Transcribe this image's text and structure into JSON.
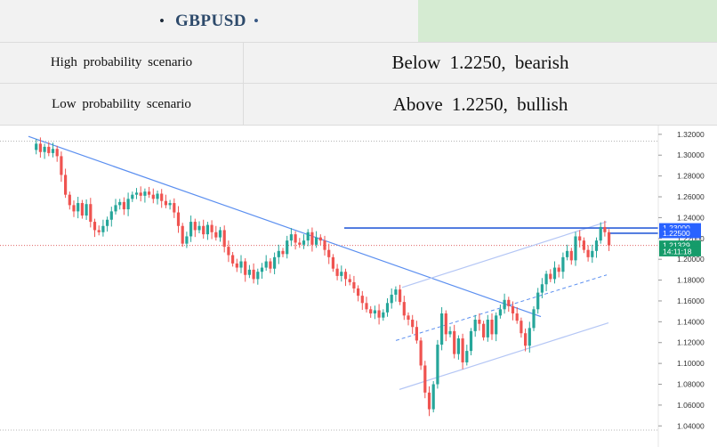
{
  "header": {
    "symbol": "GBPUSD",
    "bullet_left": "•",
    "bullet_right": "•"
  },
  "scenarios": [
    {
      "label": "High probability scenario",
      "value": "Below  1.2250,  bearish"
    },
    {
      "label": "Low probability scenario",
      "value": "Above  1.2250,  bullish"
    }
  ],
  "chart_data": {
    "type": "candlestick",
    "ylim": [
      1.03,
      1.325
    ],
    "y_ticks": [
      "1.32000",
      "1.30000",
      "1.28000",
      "1.26000",
      "1.24000",
      "1.22000",
      "1.20000",
      "1.18000",
      "1.16000",
      "1.14000",
      "1.12000",
      "1.10000",
      "1.08000",
      "1.06000",
      "1.04000"
    ],
    "y_tick_values": [
      1.32,
      1.3,
      1.28,
      1.26,
      1.24,
      1.22,
      1.2,
      1.18,
      1.16,
      1.14,
      1.12,
      1.1,
      1.08,
      1.06,
      1.04
    ],
    "price_labels": [
      {
        "text": "1.23000",
        "value": 1.23,
        "color": "#2962ff"
      },
      {
        "text": "1.22500",
        "value": 1.225,
        "color": "#2962ff"
      },
      {
        "text": "1.21329",
        "value": 1.2133,
        "color": "#159b6a"
      },
      {
        "text": "14:11:18",
        "value": 1.2075,
        "color": "#159b6a"
      }
    ],
    "horizontal_levels": [
      1.23,
      1.225
    ],
    "dotted_levels": [
      1.3135,
      1.2133,
      1.036
    ],
    "closes": [
      1.305,
      1.311,
      1.303,
      1.308,
      1.302,
      1.306,
      1.299,
      1.281,
      1.262,
      1.252,
      1.246,
      1.254,
      1.242,
      1.253,
      1.236,
      1.228,
      1.226,
      1.232,
      1.238,
      1.246,
      1.252,
      1.255,
      1.248,
      1.258,
      1.262,
      1.264,
      1.261,
      1.265,
      1.262,
      1.258,
      1.263,
      1.256,
      1.252,
      1.254,
      1.245,
      1.232,
      1.215,
      1.222,
      1.236,
      1.228,
      1.232,
      1.224,
      1.233,
      1.226,
      1.221,
      1.228,
      1.212,
      1.204,
      1.196,
      1.192,
      1.198,
      1.185,
      1.19,
      1.181,
      1.188,
      1.192,
      1.198,
      1.191,
      1.202,
      1.208,
      1.205,
      1.218,
      1.224,
      1.216,
      1.214,
      1.218,
      1.226,
      1.214,
      1.221,
      1.218,
      1.209,
      1.202,
      1.191,
      1.184,
      1.188,
      1.181,
      1.178,
      1.172,
      1.165,
      1.158,
      1.152,
      1.148,
      1.151,
      1.144,
      1.149,
      1.158,
      1.166,
      1.171,
      1.159,
      1.146,
      1.142,
      1.135,
      1.122,
      1.098,
      1.072,
      1.056,
      1.08,
      1.118,
      1.148,
      1.128,
      1.131,
      1.109,
      1.124,
      1.101,
      1.112,
      1.131,
      1.142,
      1.138,
      1.125,
      1.142,
      1.128,
      1.146,
      1.152,
      1.161,
      1.155,
      1.148,
      1.141,
      1.129,
      1.117,
      1.134,
      1.152,
      1.168,
      1.176,
      1.186,
      1.181,
      1.192,
      1.188,
      1.202,
      1.208,
      1.199,
      1.222,
      1.218,
      1.209,
      1.202,
      1.208,
      1.218,
      1.231,
      1.226,
      1.2133
    ]
  }
}
